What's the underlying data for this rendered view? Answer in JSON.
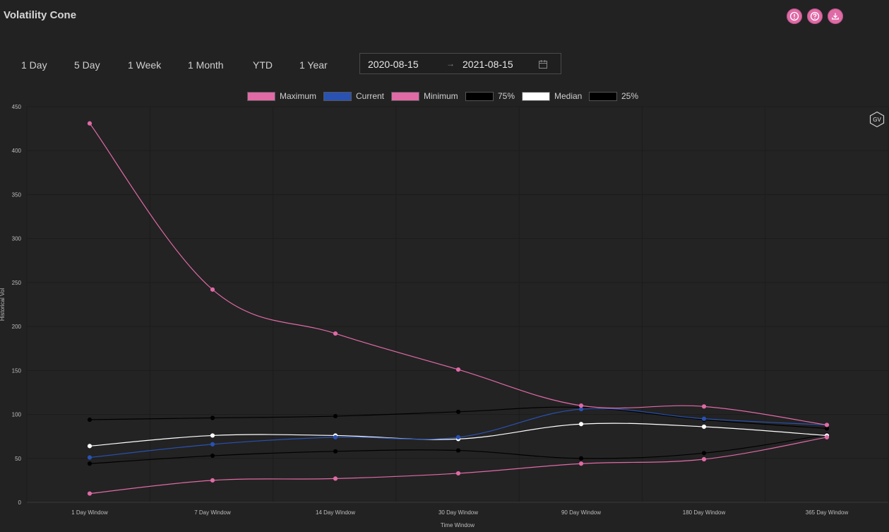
{
  "header": {
    "title": "Volatility Cone"
  },
  "toolbar": {
    "icons": [
      "info-icon",
      "help-icon",
      "download-icon"
    ],
    "accent_color": "#e06aa6"
  },
  "periods": [
    "1 Day",
    "5 Day",
    "1 Week",
    "1 Month",
    "YTD",
    "1 Year"
  ],
  "date_range": {
    "start": "2020-08-15",
    "end": "2021-08-15",
    "arrow": "→"
  },
  "badge": {
    "text": "GV"
  },
  "chart_data": {
    "type": "line",
    "categories": [
      "1 Day Window",
      "7 Day Window",
      "14 Day Window",
      "30 Day Window",
      "90 Day Window",
      "180 Day Window",
      "365 Day Window"
    ],
    "xlabel": "Time Window",
    "ylabel": "Historical Vol",
    "ylim": [
      0,
      450
    ],
    "yticks": [
      0,
      50,
      100,
      150,
      200,
      250,
      300,
      350,
      400,
      450
    ],
    "grid": true,
    "legend_position": "top-center",
    "series": [
      {
        "name": "Maximum",
        "color": "#e06aa6",
        "values": [
          431,
          242,
          192,
          151,
          110,
          109,
          88
        ]
      },
      {
        "name": "Current",
        "color": "#2952b3",
        "values": [
          51,
          66,
          74,
          74,
          106,
          95,
          88
        ]
      },
      {
        "name": "Minimum",
        "color": "#e06aa6",
        "values": [
          10,
          25,
          27,
          33,
          44,
          49,
          74
        ]
      },
      {
        "name": "75%",
        "color": "#000000",
        "values": [
          94,
          96,
          98,
          103,
          108,
          94,
          84
        ]
      },
      {
        "name": "Median",
        "color": "#ffffff",
        "values": [
          64,
          76,
          76,
          72,
          89,
          86,
          76
        ]
      },
      {
        "name": "25%",
        "color": "#000000",
        "values": [
          44,
          53,
          58,
          59,
          50,
          56,
          77
        ]
      }
    ]
  }
}
